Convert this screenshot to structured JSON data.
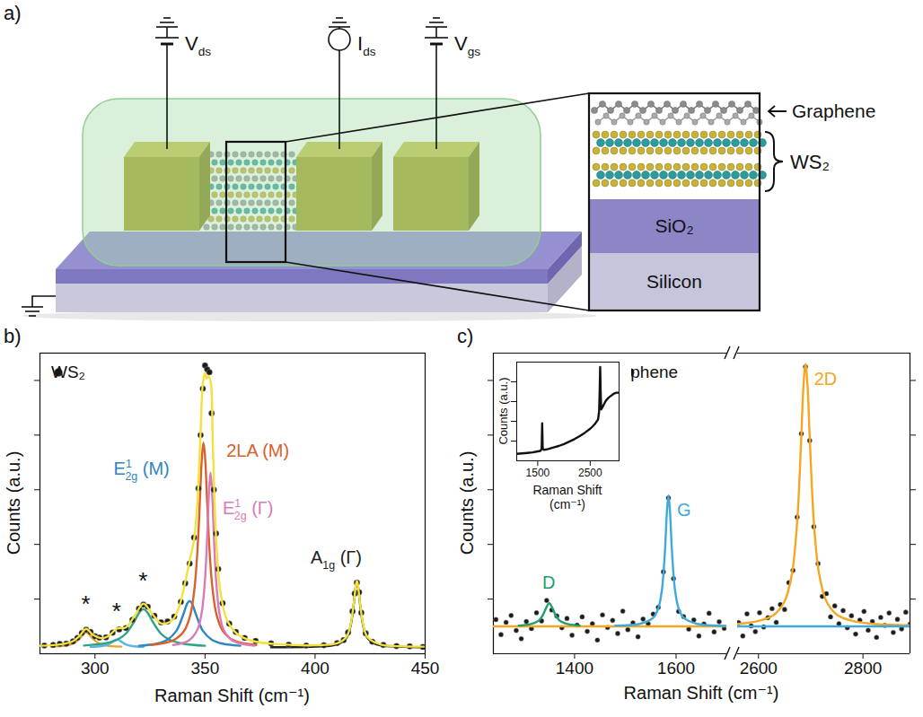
{
  "diagram": {
    "panel": "a)",
    "terminals": [
      {
        "text": "V",
        "sub": "ds"
      },
      {
        "text": "I",
        "sub": "ds"
      },
      {
        "text": "V",
        "sub": "gs"
      }
    ],
    "inset": {
      "top_label": "Graphene",
      "bracket_label": "WS₂",
      "layers": [
        "SiO₂",
        "Silicon"
      ]
    }
  },
  "chart_data": [
    {
      "panel": "b)",
      "type": "line",
      "x_label": "Raman Shift (cm⁻¹)",
      "y_label": "Counts (a.u.)",
      "xlim": [
        275,
        450
      ],
      "xticks": [
        300,
        350,
        400,
        450
      ],
      "ylim": [
        0,
        110
      ],
      "yticks": [
        20,
        40,
        60,
        80,
        100
      ],
      "tick_labels": "x",
      "legend": "top-left",
      "series": [
        {
          "name": "*",
          "color": "#e8a530",
          "x": [
            280,
            287,
            290,
            293,
            295,
            296,
            297,
            299,
            302,
            305,
            312
          ],
          "values": [
            2.6,
            3.0,
            3.7,
            5.5,
            7.4,
            7.8,
            7.4,
            5.5,
            3.7,
            3.0,
            2.6
          ]
        },
        {
          "name": "*",
          "color": "#5ab4e5",
          "x": [
            298,
            303,
            306,
            308,
            310,
            312,
            314,
            317,
            322
          ],
          "values": [
            2.5,
            2.8,
            3.4,
            4.4,
            5.3,
            4.4,
            3.4,
            2.8,
            2.5
          ]
        },
        {
          "name": "*",
          "color": "#2ea385",
          "x": [
            295,
            305,
            310,
            314,
            318,
            320,
            322,
            324,
            326,
            330,
            334,
            340,
            350
          ],
          "values": [
            3.0,
            3.9,
            5.1,
            7.3,
            12.0,
            14.9,
            16.3,
            14.9,
            12.0,
            7.3,
            5.1,
            3.7,
            2.9
          ]
        },
        {
          "name": {
            "text": "E",
            "sup": "1",
            "sub": "2g",
            "suffix": " (M)"
          },
          "color": "#2f86c1",
          "x": [
            320,
            328,
            333,
            337,
            340,
            342,
            343,
            344,
            346,
            349,
            353,
            358,
            366
          ],
          "values": [
            2.9,
            3.7,
            5.2,
            8.4,
            14.1,
            18.5,
            19.3,
            18.5,
            14.1,
            8.4,
            5.2,
            3.7,
            2.9
          ]
        },
        {
          "name": "2LA (M)",
          "color": "#d9622b",
          "x": [
            325.3,
            335.3,
            340.3,
            343.3,
            345.3,
            346.8,
            347.8,
            348.6,
            349.3,
            350,
            350.8,
            351.8,
            353.3,
            355.3,
            358.3,
            363.3,
            373.3
          ],
          "values": [
            3.2,
            4.8,
            8.1,
            14.1,
            24.6,
            41.3,
            58.6,
            72.2,
            77.3,
            72.2,
            58.6,
            41.3,
            24.6,
            14.1,
            8.1,
            4.8,
            3.2
          ]
        },
        {
          "name": {
            "text": "E",
            "sup": "1",
            "sub": "2g",
            "suffix": " (Γ)"
          },
          "color": "#d97bb6",
          "x": [
            335.5,
            342.5,
            346.5,
            348.5,
            350,
            351,
            351.8,
            352.5,
            353.2,
            354,
            355,
            356.5,
            358.5,
            362.5,
            372.5
          ],
          "values": [
            3.2,
            4.8,
            8.7,
            15.1,
            27.3,
            43.3,
            59.3,
            66.3,
            59.3,
            43.3,
            27.3,
            15.1,
            8.7,
            4.8,
            2.9
          ]
        },
        {
          "name": {
            "text": "A",
            "sub": "1g",
            "suffix": " (Γ)"
          },
          "color": "#222222",
          "x": [
            380,
            400,
            410,
            414,
            416,
            417.5,
            418.3,
            419,
            419.7,
            420.5,
            422,
            424,
            428,
            438,
            450
          ],
          "values": [
            2.4,
            2.6,
            3.4,
            5.6,
            9.7,
            17.7,
            23.7,
            26.3,
            23.7,
            17.7,
            9.7,
            5.6,
            3.4,
            2.6,
            2.4
          ]
        },
        {
          "name": "WS₂",
          "type": "scatter",
          "marker": "circle",
          "color": "#1a1a1a",
          "x": [
            277,
            281,
            284,
            287,
            290,
            292,
            294,
            296,
            298,
            300,
            302,
            305,
            308,
            311,
            314,
            317,
            320,
            322,
            324,
            327,
            330,
            333,
            336,
            339,
            341,
            343,
            345,
            347,
            348,
            349,
            350,
            351,
            352,
            353,
            354,
            355,
            356,
            358,
            361,
            364,
            368,
            373,
            380,
            388,
            396,
            404,
            410,
            413,
            415,
            417,
            418,
            419,
            420,
            421,
            423,
            426,
            431,
            437,
            443,
            449
          ],
          "values": [
            3.0,
            3.2,
            3.6,
            3.7,
            4.5,
            5.8,
            7.6,
            8.8,
            8.0,
            6.4,
            5.9,
            6.0,
            7.7,
            8.9,
            9.4,
            12.4,
            16.5,
            18.0,
            17.2,
            13.9,
            11.5,
            11.8,
            13.6,
            19.0,
            25.8,
            33.0,
            42.5,
            60.5,
            80.0,
            97.0,
            105.5,
            104.0,
            103.0,
            88.0,
            60.0,
            44.0,
            31.0,
            18.5,
            11.0,
            8.0,
            5.8,
            4.7,
            3.8,
            3.3,
            3.0,
            3.1,
            3.9,
            5.0,
            7.8,
            15.5,
            22.0,
            26.0,
            22.5,
            15.0,
            7.5,
            4.4,
            3.2,
            2.8,
            2.7,
            2.5
          ]
        },
        {
          "type": "line",
          "color": "#f3e13c",
          "x": [
            275,
            285,
            290,
            293,
            296,
            299,
            303,
            306,
            310,
            314,
            318,
            322,
            326,
            330,
            335,
            338,
            341,
            343,
            345,
            346.5,
            348,
            349,
            350,
            350.7,
            351.5,
            352.5,
            353.5,
            355,
            357,
            360,
            365,
            372,
            385,
            400,
            410,
            414,
            416,
            417.5,
            419,
            420.5,
            422,
            424,
            430,
            440,
            450
          ],
          "values": [
            2.9,
            3.5,
            4.6,
            6.5,
            9.1,
            7.0,
            5.7,
            6.4,
            9.2,
            9.6,
            13.8,
            18.3,
            14.6,
            11.1,
            12.2,
            16.6,
            26.3,
            34.0,
            41.7,
            54.8,
            81.2,
            98.9,
            102.8,
            100.7,
            101.5,
            99.8,
            77.5,
            42.8,
            22.7,
            12.3,
            7.0,
            4.6,
            3.4,
            3.1,
            3.8,
            5.9,
            10.0,
            18.0,
            26.6,
            18.0,
            10.0,
            5.9,
            3.3,
            2.7,
            2.6
          ]
        }
      ]
    },
    {
      "panel": "c)",
      "type": "line",
      "x_label": "Raman Shift (cm⁻¹)",
      "y_label": "Counts (a.u.)",
      "x_segments": [
        {
          "xlim": [
            1240,
            1700
          ],
          "xticks": [
            1400,
            1600
          ]
        },
        {
          "xlim": [
            2560,
            2890
          ],
          "xticks": [
            2600,
            2800
          ]
        }
      ],
      "ylim": [
        0,
        110
      ],
      "yticks": [
        20,
        40,
        60,
        80,
        100
      ],
      "tick_labels": "x",
      "legend": "top",
      "series": [
        {
          "name": "Graphene",
          "type": "scatter",
          "marker": "circle",
          "color": "#1a1a1a",
          "x": [
            1245,
            1255,
            1265,
            1275,
            1285,
            1295,
            1305,
            1315,
            1325,
            1335,
            1345,
            1355,
            1365,
            1375,
            1385,
            1395,
            1405,
            1415,
            1425,
            1435,
            1445,
            1455,
            1465,
            1475,
            1485,
            1495,
            1505,
            1515,
            1525,
            1535,
            1545,
            1555,
            1565,
            1575,
            1585,
            1595,
            1605,
            1615,
            1625,
            1635,
            1645,
            1655,
            1665,
            1675,
            1685,
            1695,
            2562,
            2570,
            2578,
            2586,
            2594,
            2602,
            2610,
            2618,
            2626,
            2634,
            2642,
            2650,
            2658,
            2666,
            2674,
            2682,
            2690,
            2698,
            2706,
            2714,
            2722,
            2730,
            2738,
            2746,
            2754,
            2762,
            2770,
            2778,
            2786,
            2794,
            2802,
            2810,
            2818,
            2826,
            2834,
            2842,
            2850,
            2858,
            2866,
            2874,
            2882,
            2890
          ],
          "values": [
            12.5,
            7.0,
            11.5,
            14.0,
            8.5,
            5.5,
            11.8,
            9.2,
            15.0,
            12.0,
            19.5,
            16.0,
            13.8,
            9.5,
            12.9,
            6.8,
            10.5,
            13.5,
            8.2,
            11.0,
            5.0,
            14.2,
            9.6,
            12.2,
            7.4,
            15.6,
            8.8,
            11.3,
            6.2,
            12.7,
            11.0,
            14.5,
            17.0,
            30.0,
            57.0,
            27.5,
            15.5,
            13.6,
            9.0,
            12.4,
            6.5,
            10.9,
            14.8,
            8.0,
            11.7,
            9.3,
            11.4,
            6.5,
            14.6,
            10.2,
            8.1,
            15.0,
            9.8,
            13.2,
            16.5,
            11.5,
            18.0,
            16.2,
            26.0,
            30.5,
            50.0,
            80.5,
            105.0,
            78.0,
            46.5,
            33.0,
            21.0,
            22.0,
            13.5,
            17.5,
            11.0,
            15.8,
            9.5,
            13.9,
            7.2,
            12.3,
            15.5,
            8.6,
            11.8,
            6.0,
            13.3,
            10.4,
            14.9,
            7.8,
            12.6,
            9.1,
            15.2,
            10.8
          ]
        },
        {
          "name": "2D",
          "color": "#f5a623",
          "x": [
            1240,
            1700,
            2560,
            2600,
            2630,
            2650,
            2664,
            2674,
            2682,
            2686,
            2690,
            2694,
            2698,
            2706,
            2716,
            2730,
            2750,
            2780,
            2820,
            2890
          ],
          "values": [
            10,
            10,
            10.9,
            12.0,
            14.3,
            19.2,
            29.2,
            48.2,
            79.6,
            97.7,
            106,
            97.7,
            79.6,
            48.2,
            29.2,
            19.2,
            14.3,
            12.0,
            10.9,
            10.4
          ]
        },
        {
          "name": "D",
          "color": "#1f9e6e",
          "x": [
            1290,
            1310,
            1320,
            1330,
            1338,
            1344,
            1350,
            1356,
            1362,
            1370,
            1380,
            1390,
            1410
          ],
          "values": [
            10.3,
            10.7,
            11.2,
            12.2,
            14.3,
            16.8,
            18.5,
            16.8,
            14.3,
            12.2,
            11.2,
            10.7,
            10.3
          ]
        },
        {
          "name": "G",
          "color": "#3fa9dc",
          "x": [
            1480,
            1530,
            1555,
            1565,
            1572,
            1578,
            1582,
            1585,
            1588,
            1592,
            1598,
            1605,
            1615,
            1640,
            1700,
            2560,
            2890
          ],
          "values": [
            10.3,
            11.0,
            13.2,
            16.6,
            23.2,
            37.2,
            52.1,
            58,
            52.1,
            37.2,
            23.2,
            16.6,
            13.2,
            11.0,
            10.2,
            10,
            10
          ]
        }
      ],
      "inset": {
        "type": "line",
        "x_label": "Raman Shift (cm⁻¹)",
        "y_label": "Counts (a.u.)",
        "xlim": [
          1100,
          3050
        ],
        "xticks": [
          1500,
          2500
        ],
        "ylim": [
          0,
          100
        ],
        "yticks": [
          20,
          40,
          60,
          80
        ],
        "tick_labels": "x",
        "series": [
          {
            "color": "#111111",
            "x": [
              1100,
              1200,
              1300,
              1400,
              1500,
              1550,
              1575,
              1585,
              1595,
              1620,
              1700,
              1800,
              1900,
              2000,
              2100,
              2200,
              2300,
              2400,
              2500,
              2550,
              2600,
              2650,
              2670,
              2680,
              2690,
              2700,
              2710,
              2730,
              2760,
              2800,
              2850,
              2900,
              2950,
              3000,
              3050
            ],
            "values": [
              7,
              7.5,
              8,
              8.5,
              9.5,
              10,
              12,
              38,
              12,
              11,
              12,
              13.5,
              15,
              17,
              19.5,
              22,
              25,
              28.5,
              32.5,
              35,
              38,
              42,
              50,
              70,
              95,
              68,
              52,
              54,
              57,
              61,
              64,
              66,
              68,
              69,
              69
            ]
          }
        ]
      }
    }
  ]
}
